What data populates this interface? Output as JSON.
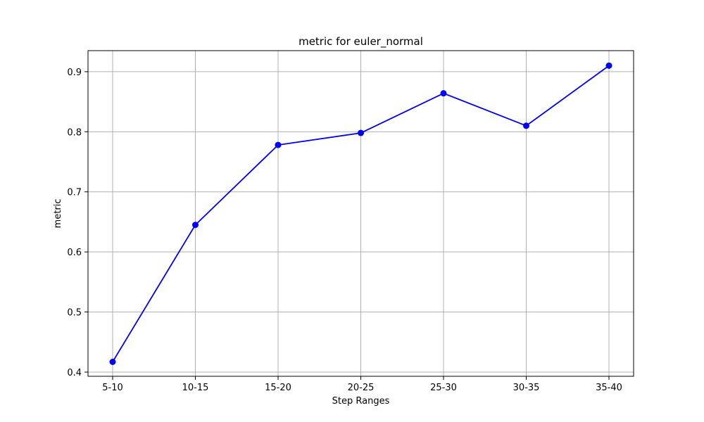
{
  "chart_data": {
    "type": "line",
    "title": "metric for euler_normal",
    "xlabel": "Step Ranges",
    "ylabel": "metric",
    "categories": [
      "5-10",
      "10-15",
      "15-20",
      "20-25",
      "25-30",
      "30-35",
      "35-40"
    ],
    "series": [
      {
        "values": [
          0.417,
          0.645,
          0.778,
          0.798,
          0.864,
          0.81,
          0.91
        ],
        "color": "#0000ff",
        "marker": "circle"
      }
    ],
    "yticks": [
      "0.4",
      "0.5",
      "0.6",
      "0.7",
      "0.8",
      "0.9"
    ],
    "ylim": [
      0.393,
      0.935
    ],
    "grid": true
  }
}
